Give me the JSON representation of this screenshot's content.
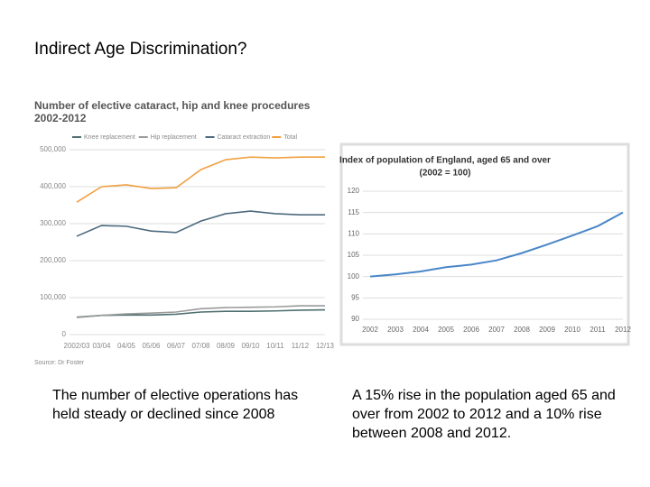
{
  "slide_title": "Indirect Age Discrimination?",
  "captions": [
    "The number of elective operations has held steady or declined since 2008",
    "A 15% rise in the population aged 65 and over from 2002 to 2012 and a 10% rise between 2008 and 2012."
  ],
  "chart_data": [
    {
      "type": "line",
      "title": "Number of elective cataract, hip and knee procedures",
      "subtitle": "2002-2012",
      "source": "Source: Dr Foster",
      "categories": [
        "2002/03",
        "03/04",
        "04/05",
        "05/06",
        "06/07",
        "07/08",
        "08/09",
        "09/10",
        "10/11",
        "11/12",
        "12/13"
      ],
      "series": [
        {
          "name": "Knee replacement",
          "color": "#4f6f70",
          "values": [
            47000,
            52000,
            53000,
            53000,
            55000,
            61000,
            63000,
            63000,
            64000,
            66000,
            67000
          ]
        },
        {
          "name": "Hip replacement",
          "color": "#9a9a9a",
          "values": [
            46000,
            52000,
            56000,
            58000,
            61000,
            70000,
            73000,
            74000,
            75000,
            78000,
            78000
          ]
        },
        {
          "name": "Cataract extraction",
          "color": "#4d6a7e",
          "values": [
            266000,
            295000,
            293000,
            280000,
            276000,
            307000,
            327000,
            334000,
            327000,
            324000,
            324000
          ]
        },
        {
          "name": "Total",
          "color": "#f0a040",
          "values": [
            358000,
            400000,
            405000,
            395000,
            397000,
            446000,
            473000,
            480000,
            478000,
            480000,
            480000
          ]
        }
      ],
      "ylim": [
        0,
        500000
      ],
      "yticks": [
        0,
        {
          "value": 100000,
          "label": "100,000"
        },
        {
          "value": 200000,
          "label": "200,000"
        },
        {
          "value": 300000,
          "label": "300,000"
        },
        {
          "value": 400000,
          "label": "400,000"
        },
        {
          "value": 500000,
          "label": "500,000"
        }
      ],
      "grid": true
    },
    {
      "type": "line",
      "title": "Index of population of England, aged 65 and over",
      "subtitle": "(2002 = 100)",
      "categories": [
        "2002",
        "2003",
        "2004",
        "2005",
        "2006",
        "2007",
        "2008",
        "2009",
        "2010",
        "2011",
        "2012"
      ],
      "series": [
        {
          "name": "Index",
          "color": "#4a86c8",
          "values": [
            100,
            100.5,
            101.2,
            102.2,
            102.8,
            103.8,
            105.5,
            107.5,
            109.6,
            111.8,
            115
          ]
        }
      ],
      "ylim": [
        90,
        120
      ],
      "yticks": [
        90,
        95,
        100,
        105,
        110,
        115,
        120
      ],
      "grid": true
    }
  ]
}
